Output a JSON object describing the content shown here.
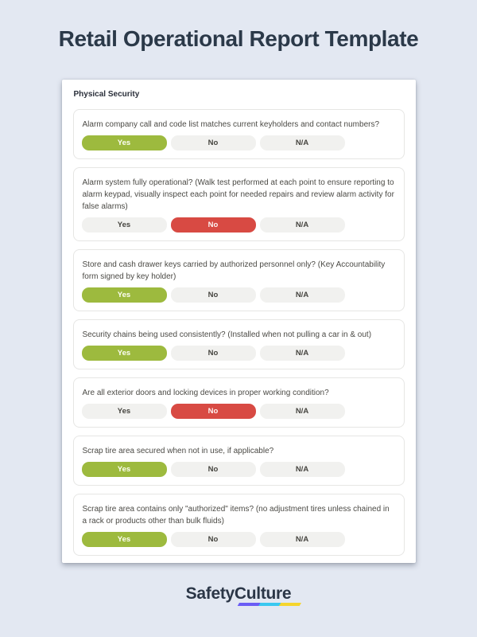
{
  "page": {
    "title": "Retail Operational Report Template"
  },
  "card": {
    "section_header": "Physical Security"
  },
  "answer_options": [
    "Yes",
    "No",
    "N/A"
  ],
  "questions": [
    {
      "text": "Alarm company call and code list matches current keyholders and contact numbers?",
      "answer": "Yes"
    },
    {
      "text": "Alarm system fully operational? (Walk test performed at each point to ensure reporting to alarm keypad, visually inspect each point for needed repairs and review alarm activity for false alarms)",
      "answer": "No"
    },
    {
      "text": "Store and cash drawer keys carried by authorized personnel only? (Key Accountability form signed by key holder)",
      "answer": "Yes"
    },
    {
      "text": "Security chains being used consistently? (Installed when not pulling a car in & out)",
      "answer": "Yes"
    },
    {
      "text": "Are all exterior doors and locking devices in proper working condition?",
      "answer": "No"
    },
    {
      "text": "Scrap tire area secured when not in use, if applicable?",
      "answer": "Yes"
    },
    {
      "text": "Scrap tire area contains only \"authorized\" items? (no adjustment tires unless chained in a rack or products other than bulk fluids)",
      "answer": "Yes"
    }
  ],
  "colors": {
    "yes_selected": "#9dba3e",
    "no_selected": "#d84a43",
    "logo_gradient": [
      "#6a5cf5",
      "#39c8f0",
      "#f5d52d"
    ]
  },
  "footer": {
    "brand": "SafetyCulture"
  }
}
